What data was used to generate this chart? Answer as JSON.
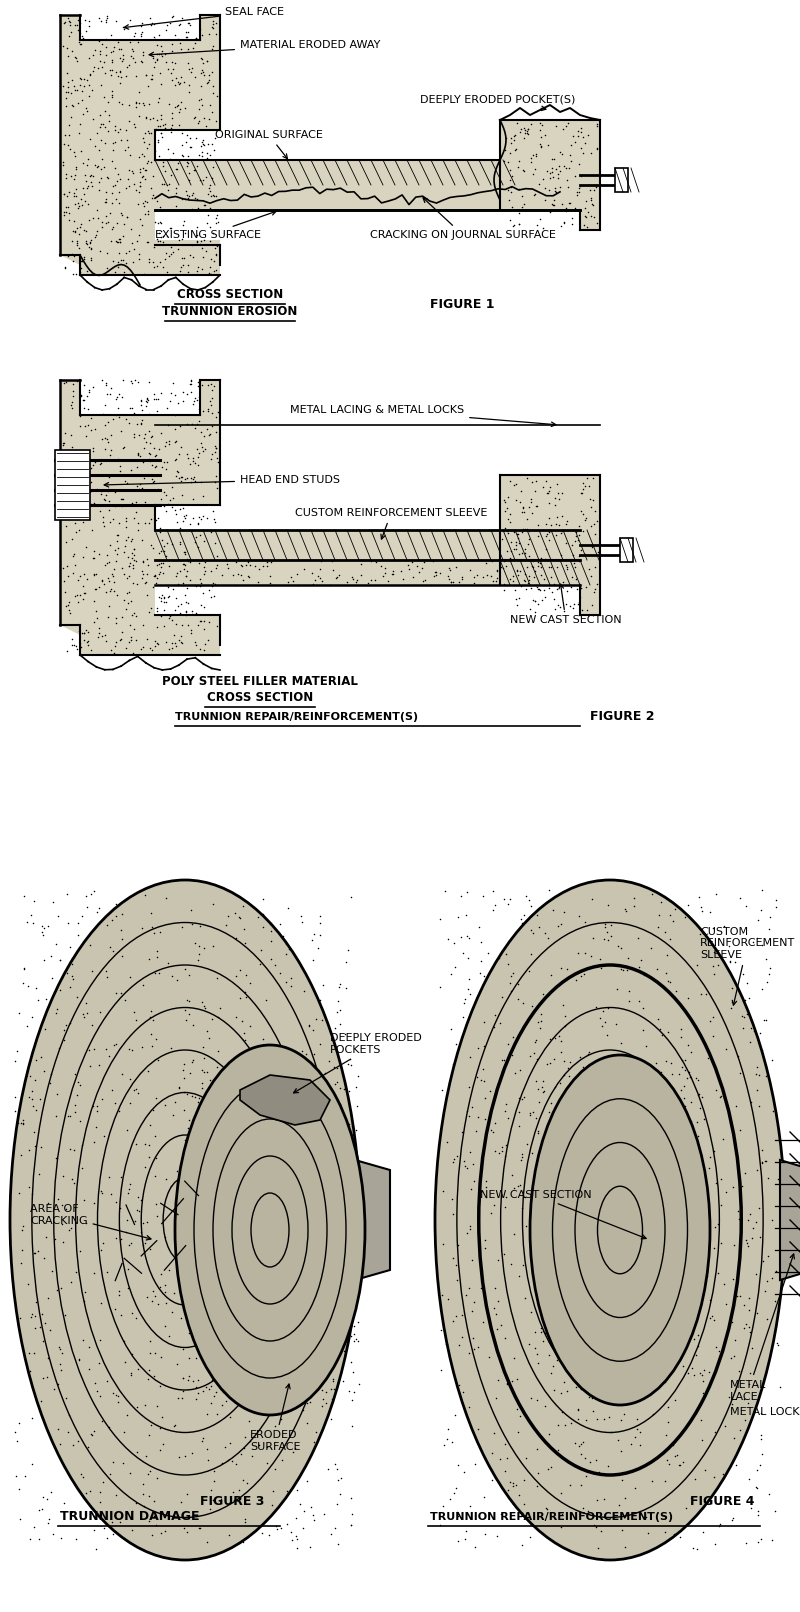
{
  "bg_color": "#ffffff",
  "fig_width": 8.0,
  "fig_height": 16.12,
  "dpi": 100,
  "fig1": {
    "title_line1": "CROSS SECTION",
    "title_line2": "TRUNNION EROSION",
    "figure_label": "FIGURE 1",
    "labels": [
      "SEAL FACE",
      "MATERIAL ERODED AWAY",
      "ORIGINAL SURFACE",
      "DEEPLY ERODED POCKET(S)",
      "EXISTING SURFACE",
      "CRACKING ON JOURNAL SURFACE"
    ]
  },
  "fig2": {
    "title_line1": "POLY STEEL FILLER MATERIAL",
    "title_line2": "CROSS SECTION",
    "title_line3": "TRUNNION REPAIR/REINFORCEMENT(S)",
    "figure_label": "FIGURE 2",
    "labels": [
      "METAL LACING & METAL LOCKS",
      "HEAD END STUDS",
      "CUSTOM REINFORCEMENT SLEEVE",
      "NEW CAST SECTION"
    ]
  },
  "fig3": {
    "caption": "TRUNNION DAMAGE",
    "figure_label": "FIGURE 3",
    "labels": [
      "DEEPLY ERODED\nPOCKETS",
      "AREA OF\nCRACKING",
      "ERODED\nSURFACE"
    ]
  },
  "fig4": {
    "caption": "TRUNNION REPAIR/REINFORCEMENT(S)",
    "figure_label": "FIGURE 4",
    "labels": [
      "CUSTOM\nREINFORCEMENT\nSLEEVE",
      "NEW CAST SECTION",
      "METAL\nLACE",
      "METAL LOCK"
    ]
  },
  "stipple_color": "#888888",
  "line_color": "#000000",
  "hatch_color": "#000000",
  "body_fill": "#d8d0b8",
  "sleeve_fill": "#e8e4d8"
}
